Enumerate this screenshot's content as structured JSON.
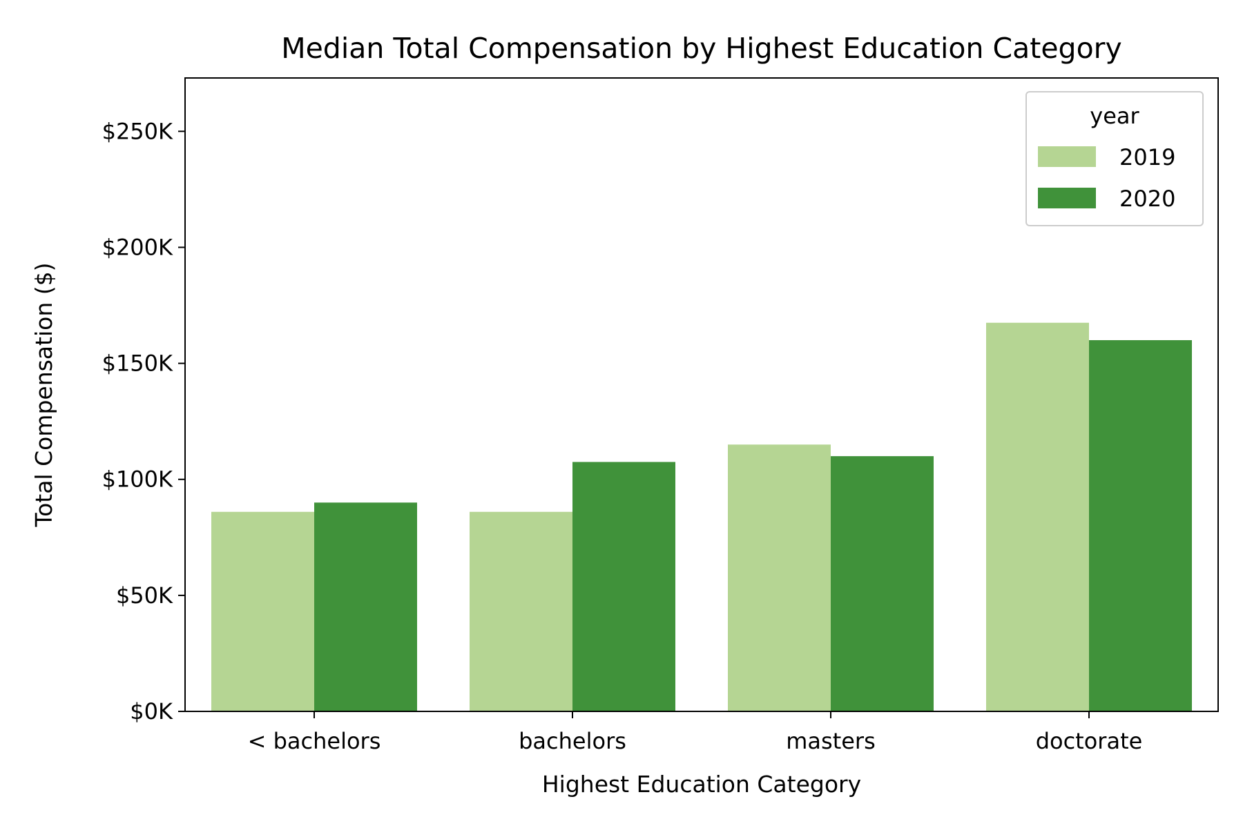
{
  "chart_data": {
    "type": "bar",
    "title": "Median Total Compensation by Highest Education Category",
    "xlabel": "Highest Education Category",
    "ylabel": "Total Compensation ($)",
    "categories": [
      "< bachelors",
      "bachelors",
      "masters",
      "doctorate"
    ],
    "series": [
      {
        "name": "2019",
        "color": "#b5d593",
        "values": [
          86000,
          86000,
          115000,
          167500
        ]
      },
      {
        "name": "2020",
        "color": "#40923a",
        "values": [
          90000,
          107500,
          110000,
          160000
        ]
      }
    ],
    "ylim": [
      0,
      273000
    ],
    "yticks": [
      0,
      50000,
      100000,
      150000,
      200000,
      250000
    ],
    "ytick_labels": [
      "$0K",
      "$50K",
      "$100K",
      "$150K",
      "$200K",
      "$250K"
    ],
    "legend": {
      "title": "year",
      "placement": "top-right"
    },
    "grid": false
  }
}
